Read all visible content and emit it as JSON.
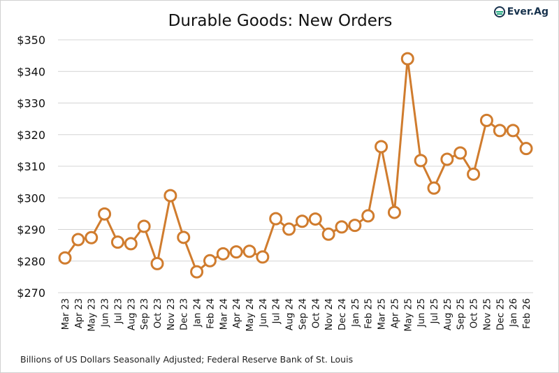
{
  "logo_text": "Ever.Ag",
  "footnote": "Billions of US Dollars Seasonally Adjusted; Federal Reserve Bank of St. Louis",
  "colors": {
    "line": "#d07c2e",
    "grid": "#d4d4d4",
    "logo_green": "#1aa37a"
  },
  "chart_data": {
    "type": "line",
    "title": "Durable Goods: New Orders",
    "xlabel": "",
    "ylabel": "",
    "ylim": [
      270,
      350
    ],
    "yticks": [
      270,
      280,
      290,
      300,
      310,
      320,
      330,
      340,
      350
    ],
    "ytick_labels": [
      "$270",
      "$280",
      "$290",
      "$300",
      "$310",
      "$320",
      "$330",
      "$340",
      "$350"
    ],
    "grid": true,
    "markers": "open-circle",
    "categories": [
      "Mar 23",
      "Apr 23",
      "May 23",
      "Jun 23",
      "Jul 23",
      "Aug 23",
      "Sep 23",
      "Oct 23",
      "Nov 23",
      "Dec 23",
      "Jan 24",
      "Feb 24",
      "Mar 24",
      "Apr 24",
      "May 24",
      "Jun 24",
      "Jul 24",
      "Aug 24",
      "Sep 24",
      "Oct 24",
      "Nov 24",
      "Dec 24",
      "Jan 25",
      "Feb 25",
      "Mar 25",
      "Apr 25",
      "May 25",
      "Jun 25",
      "Jul 25",
      "Aug 25",
      "Sep 25",
      "Oct 25",
      "Nov 25",
      "Dec 25",
      "Jan 26",
      "Feb 26"
    ],
    "values": [
      281.0,
      286.8,
      287.4,
      294.9,
      286.0,
      285.5,
      291.0,
      279.2,
      300.7,
      287.5,
      276.6,
      280.1,
      282.3,
      282.9,
      283.1,
      281.3,
      293.4,
      290.1,
      292.6,
      293.3,
      288.5,
      290.8,
      291.3,
      294.3,
      316.2,
      295.4,
      344.0,
      311.8,
      303.1,
      312.2,
      314.2,
      307.5,
      324.5,
      321.3,
      321.3,
      315.6
    ]
  }
}
